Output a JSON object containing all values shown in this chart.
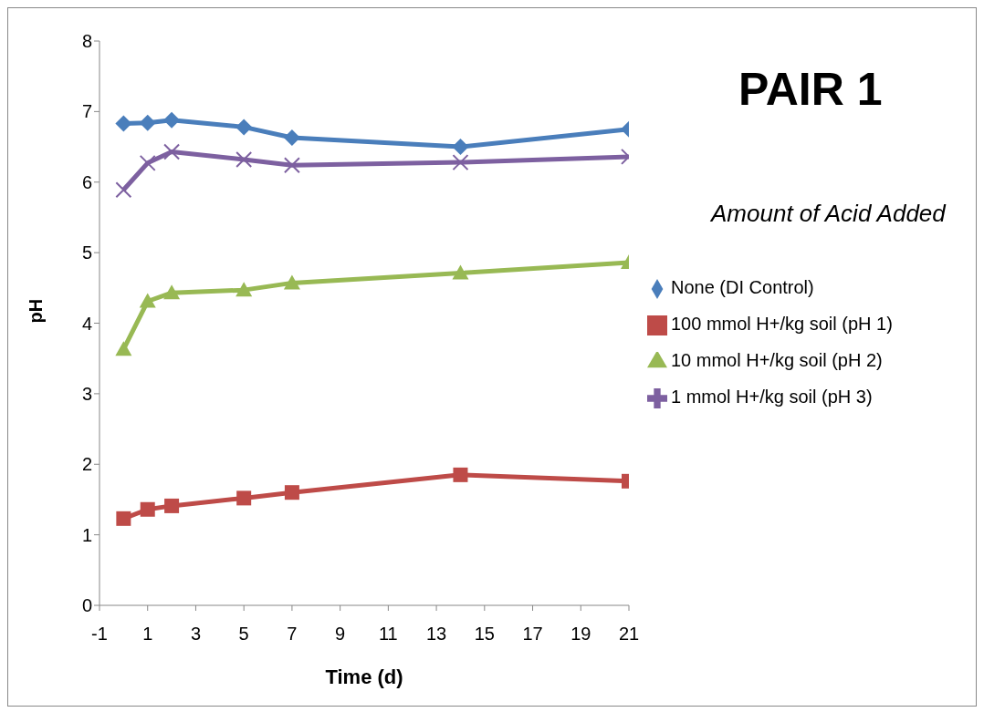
{
  "chart_data": {
    "type": "line",
    "title": "PAIR 1",
    "legend_title": "Amount of Acid Added",
    "xlabel": "Time (d)",
    "ylabel": "pH",
    "x": [
      0,
      1,
      2,
      5,
      7,
      14,
      21
    ],
    "xlim": [
      -1,
      21
    ],
    "xticks": [
      -1,
      1,
      3,
      5,
      7,
      9,
      11,
      13,
      15,
      17,
      19,
      21
    ],
    "ylim": [
      0,
      8
    ],
    "yticks": [
      0,
      1,
      2,
      3,
      4,
      5,
      6,
      7,
      8
    ],
    "grid": false,
    "legend": "right",
    "line_style": "solid",
    "series": [
      {
        "name": "None (DI Control)",
        "color": "#4a7ebb",
        "marker": "diamond",
        "values": [
          6.83,
          6.84,
          6.88,
          6.78,
          6.63,
          6.5,
          6.75
        ]
      },
      {
        "name": "100 mmol H+/kg soil (pH 1)",
        "color": "#be4b48",
        "marker": "square",
        "values": [
          1.23,
          1.36,
          1.41,
          1.52,
          1.6,
          1.85,
          1.76
        ]
      },
      {
        "name": "10 mmol H+/kg soil (pH 2)",
        "color": "#98b954",
        "marker": "triangle",
        "values": [
          3.63,
          4.31,
          4.43,
          4.47,
          4.57,
          4.71,
          4.86
        ]
      },
      {
        "name": "1 mmol H+/kg soil (pH 3)",
        "color": "#7d60a0",
        "marker": "cross",
        "values": [
          5.89,
          6.27,
          6.43,
          6.32,
          6.24,
          6.28,
          6.36
        ]
      }
    ]
  }
}
